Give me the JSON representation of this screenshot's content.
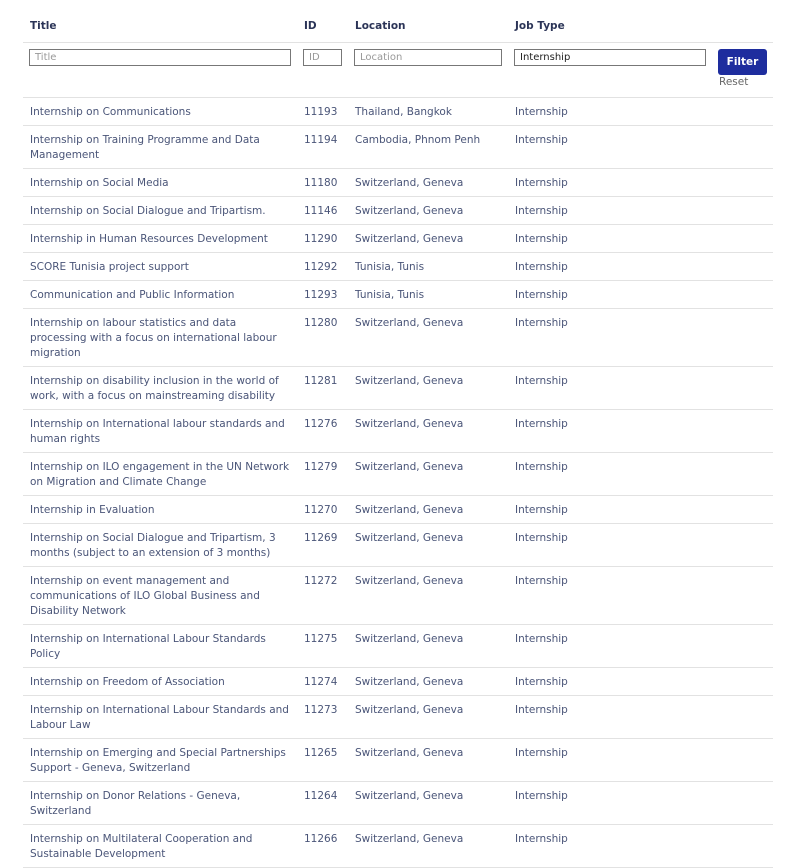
{
  "table": {
    "columns": [
      "Title",
      "ID",
      "Location",
      "Job Type"
    ],
    "filters": {
      "placeholders": [
        "Title",
        "ID",
        "Location"
      ],
      "job_type": "Internship",
      "button": "Filter",
      "reset": "Reset"
    },
    "rows": [
      [
        "Internship on Communications",
        "11193",
        "Thailand, Bangkok",
        "Internship"
      ],
      [
        "Internship on Training Programme and Data Management",
        "11194",
        "Cambodia, Phnom Penh",
        "Internship"
      ],
      [
        "Internship on Social Media",
        "11180",
        "Switzerland, Geneva",
        "Internship"
      ],
      [
        "Internship on Social Dialogue and Tripartism.",
        "11146",
        "Switzerland, Geneva",
        "Internship"
      ],
      [
        "Internship in Human Resources Development",
        "11290",
        "Switzerland, Geneva",
        "Internship"
      ],
      [
        "SCORE Tunisia project support",
        "11292",
        "Tunisia, Tunis",
        "Internship"
      ],
      [
        "Communication and Public Information",
        "11293",
        "Tunisia, Tunis",
        "Internship"
      ],
      [
        "Internship on labour statistics and data processing with a focus on international labour migration",
        "11280",
        "Switzerland, Geneva",
        "Internship"
      ],
      [
        "Internship on disability inclusion in the world of work, with a focus on mainstreaming disability",
        "11281",
        "Switzerland, Geneva",
        "Internship"
      ],
      [
        "Internship on International labour standards and human rights",
        "11276",
        "Switzerland, Geneva",
        "Internship"
      ],
      [
        "Internship on ILO engagement in the UN Network on Migration and Climate Change",
        "11279",
        "Switzerland, Geneva",
        "Internship"
      ],
      [
        "Internship in Evaluation",
        "11270",
        "Switzerland, Geneva",
        "Internship"
      ],
      [
        "Internship on Social Dialogue and Tripartism, 3 months (subject to an extension of 3 months)",
        "11269",
        "Switzerland, Geneva",
        "Internship"
      ],
      [
        "Internship on event management and communications of ILO Global Business and Disability Network",
        "11272",
        "Switzerland, Geneva",
        "Internship"
      ],
      [
        "Internship on International Labour Standards Policy",
        "11275",
        "Switzerland, Geneva",
        "Internship"
      ],
      [
        "Internship on Freedom of Association",
        "11274",
        "Switzerland, Geneva",
        "Internship"
      ],
      [
        "Internship on International Labour Standards and Labour Law",
        "11273",
        "Switzerland, Geneva",
        "Internship"
      ],
      [
        "Internship on Emerging and Special Partnerships Support - Geneva, Switzerland",
        "11265",
        "Switzerland, Geneva",
        "Internship"
      ],
      [
        "Internship on Donor Relations - Geneva, Switzerland",
        "11264",
        "Switzerland, Geneva",
        "Internship"
      ],
      [
        "Internship on Multilateral Cooperation and Sustainable Development",
        "11266",
        "Switzerland, Geneva",
        "Internship"
      ]
    ]
  }
}
